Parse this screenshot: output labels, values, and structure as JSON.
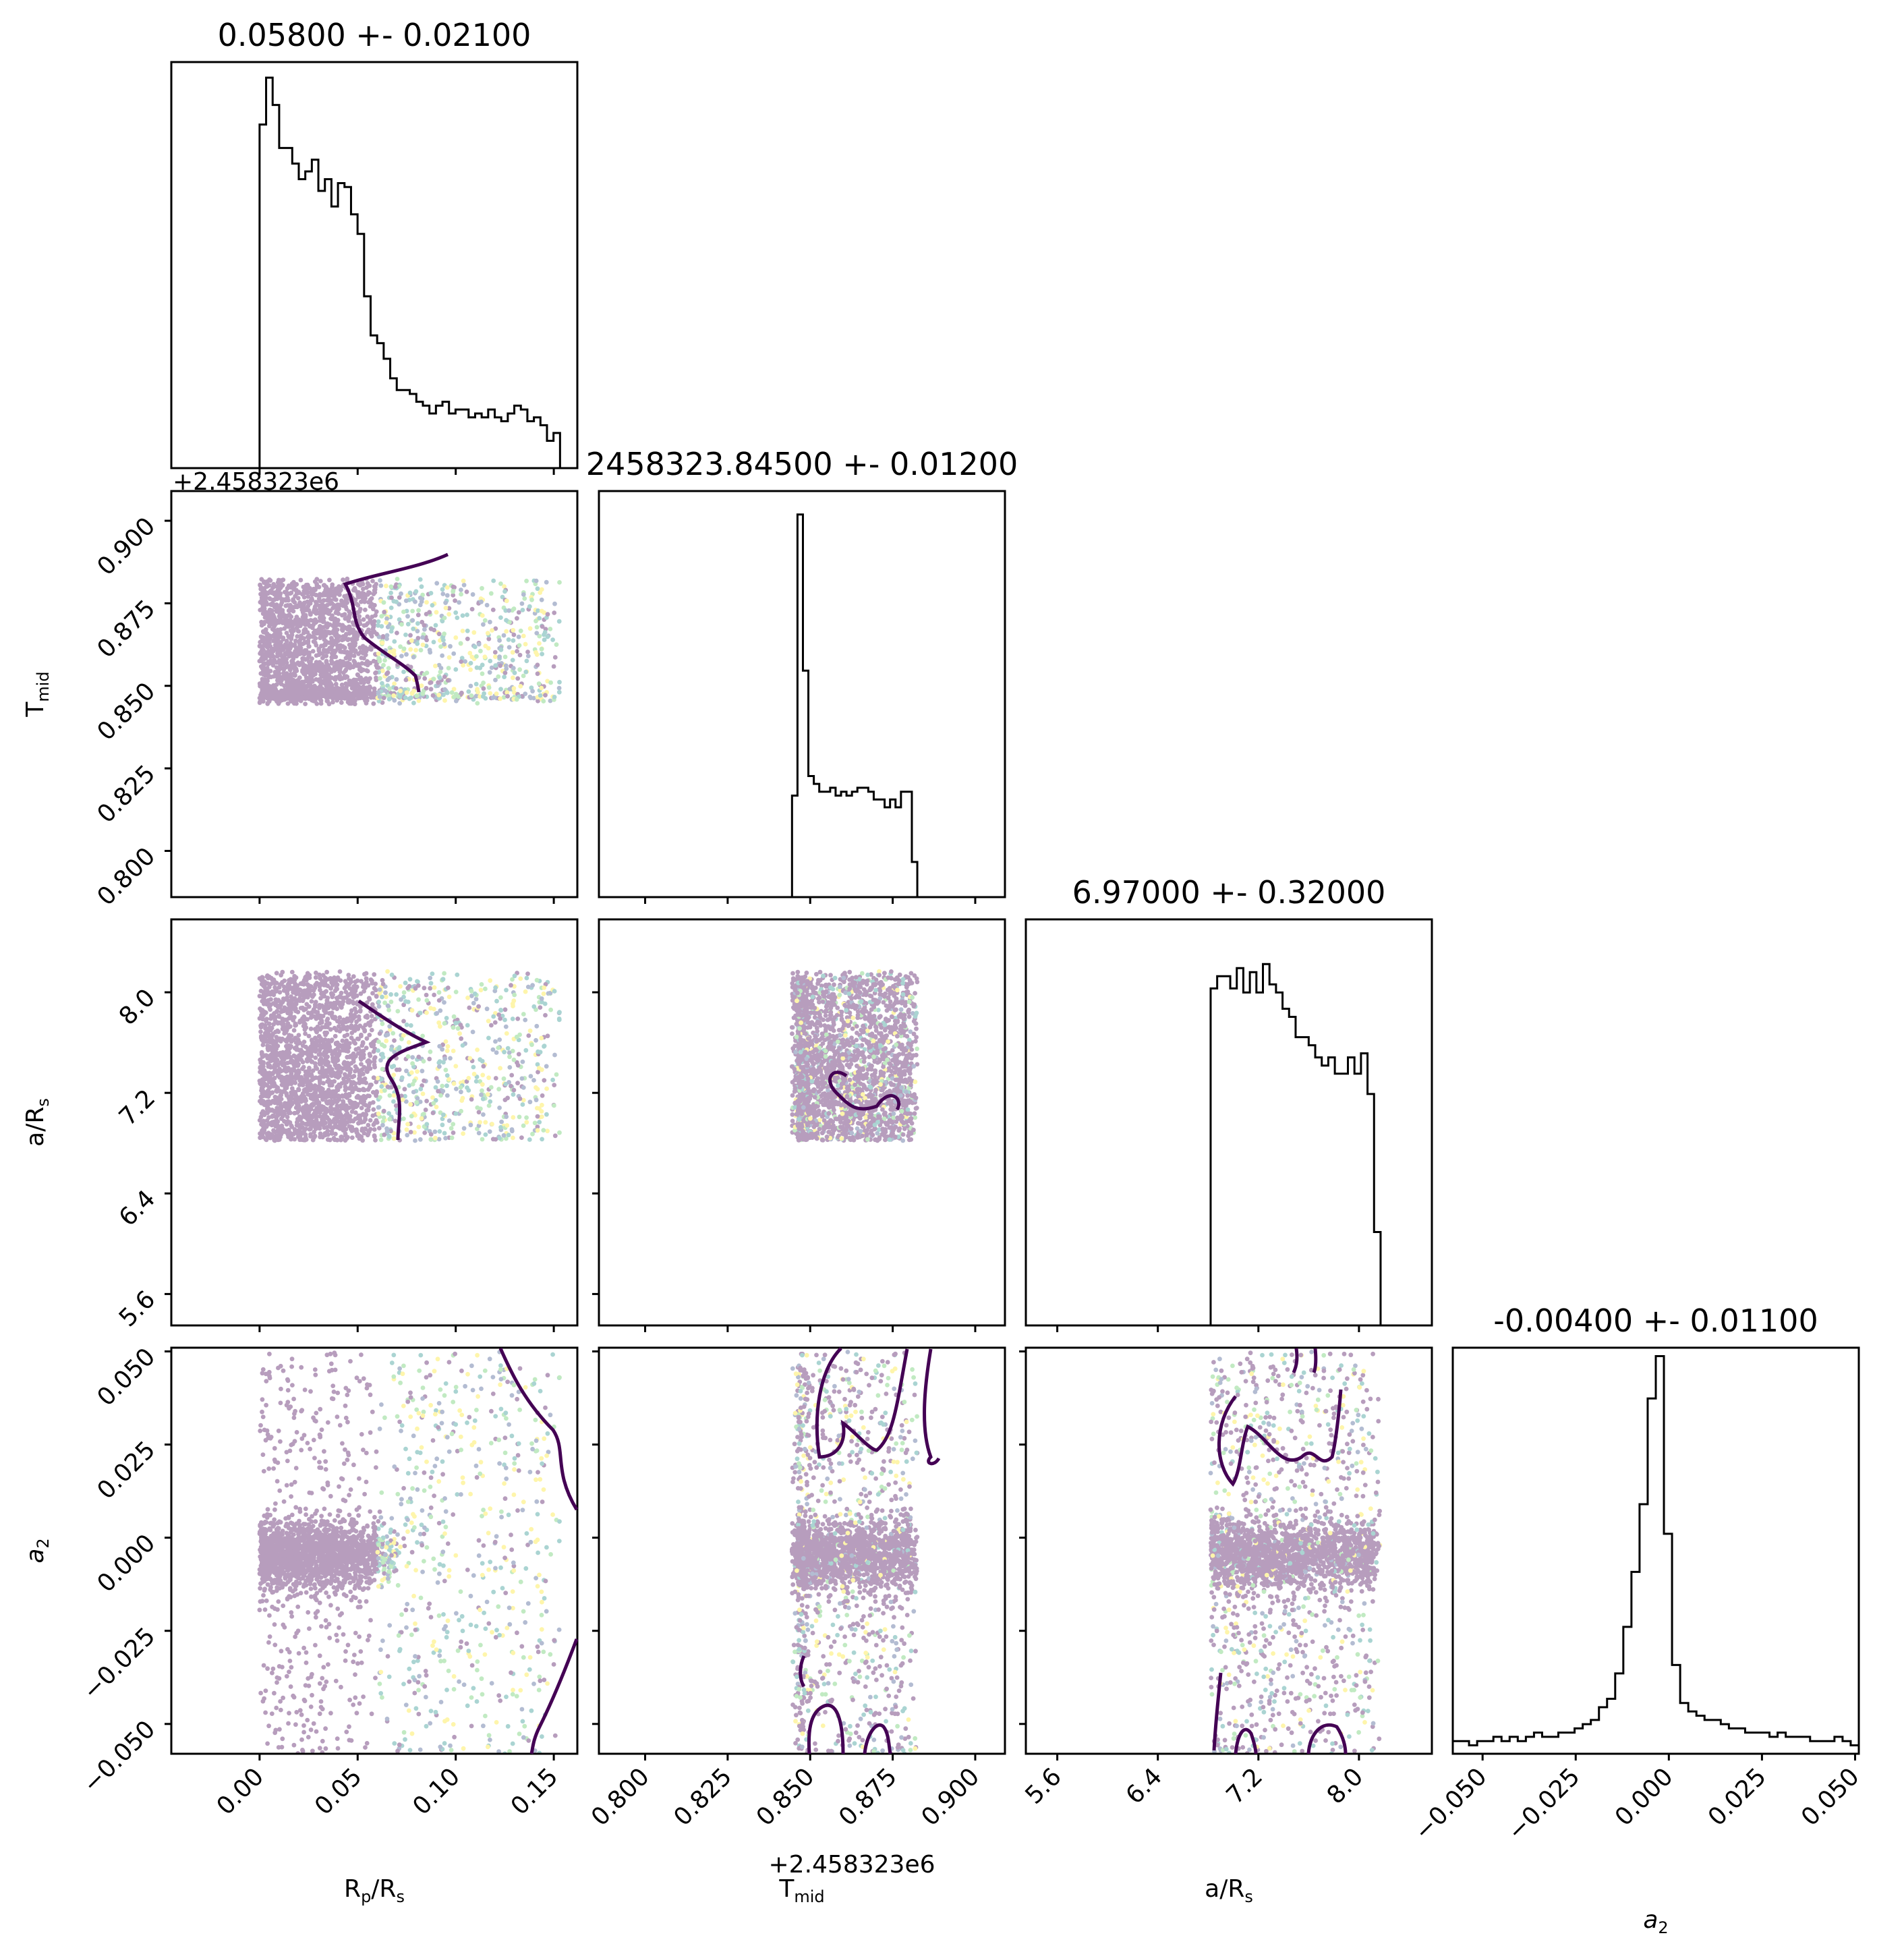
{
  "chart_data": {
    "type": "scatter",
    "subtype": "corner-plot",
    "parameters": [
      {
        "key": "rprs",
        "label_main": "R",
        "label_sub": "p",
        "label_tail": "/R",
        "label_sub2": "s",
        "title": "0.05800 +- 0.02100",
        "range": [
          -0.045,
          0.162
        ],
        "ticks": [
          0.0,
          0.05,
          0.1,
          0.15
        ],
        "tick_labels": [
          "0.00",
          "0.05",
          "0.10",
          "0.15"
        ],
        "histogram": {
          "x_start": 0.0,
          "bin_width": 0.00333,
          "counts": [
            88,
            100,
            93,
            82,
            82,
            78,
            74,
            76,
            79,
            71,
            74,
            67,
            73,
            72,
            65,
            60,
            44,
            34,
            32,
            28,
            23,
            20,
            20,
            19,
            17,
            16,
            14,
            16,
            17,
            14,
            15,
            15,
            13,
            14,
            13,
            15,
            13,
            12,
            14,
            16,
            15,
            12,
            13,
            11,
            7,
            9
          ],
          "ymax": 104
        }
      },
      {
        "key": "tmid",
        "label_main": "T",
        "label_sub": "mid",
        "label_tail": "",
        "label_sub2": "",
        "title": "2458323.84500 +- 0.01200",
        "range": [
          0.786,
          0.909
        ],
        "offset_label": "+2.458323e6",
        "ticks": [
          0.8,
          0.825,
          0.85,
          0.875,
          0.9
        ],
        "tick_labels": [
          "0.800",
          "0.825",
          "0.850",
          "0.875",
          "0.900"
        ],
        "histogram": {
          "x_start": 0.8445,
          "bin_width": 0.00165,
          "counts": [
            26,
            98,
            58,
            31,
            29,
            27,
            27,
            28,
            26,
            27,
            26,
            27,
            28,
            28,
            27,
            25,
            25,
            23,
            25,
            23,
            27,
            27,
            9
          ],
          "ymax": 104
        }
      },
      {
        "key": "ars",
        "label_main": "a/R",
        "label_sub": "s",
        "label_tail": "",
        "label_sub2": "",
        "title": "6.97000 +- 0.32000",
        "range": [
          5.35,
          8.58
        ],
        "ticks": [
          5.6,
          6.4,
          7.2,
          8.0
        ],
        "tick_labels": [
          "5.6",
          "6.4",
          "7.2",
          "8.0"
        ],
        "histogram": {
          "x_start": 6.82,
          "bin_width": 0.052,
          "counts": [
            83,
            86,
            86,
            83,
            88,
            82,
            87,
            82,
            89,
            84,
            82,
            78,
            76,
            71,
            71,
            69,
            66,
            64,
            66,
            62,
            62,
            66,
            62,
            67,
            57,
            23
          ],
          "ymax": 100
        }
      },
      {
        "key": "a2",
        "label_main": "a",
        "label_sub": "2",
        "label_tail": "",
        "label_sub2": "",
        "label_italic": true,
        "title": "-0.00400 +- 0.01100",
        "range": [
          -0.058,
          0.051
        ],
        "ticks": [
          -0.05,
          -0.025,
          0.0,
          0.025,
          0.05
        ],
        "tick_labels": [
          "−0.050",
          "−0.025",
          "0.000",
          "0.025",
          "0.050"
        ],
        "histogram": {
          "x_start": -0.058,
          "bin_width": 0.00218,
          "counts": [
            3,
            3,
            2,
            3,
            3,
            4,
            3,
            4,
            3,
            4,
            5,
            4,
            4,
            5,
            5,
            6,
            7,
            8,
            11,
            13,
            19,
            30,
            43,
            59,
            84,
            94,
            52,
            21,
            12,
            10,
            9,
            8,
            8,
            7,
            6,
            6,
            5,
            5,
            5,
            4,
            5,
            4,
            4,
            4,
            3,
            3,
            3,
            4,
            3,
            2
          ],
          "ymax": 96
        }
      }
    ],
    "scatter_points_per_panel": 2600,
    "scatter_colormap": [
      "#440154",
      "#3b528b",
      "#21918c",
      "#5ec962",
      "#fde725"
    ],
    "contour_color": "#440154",
    "histogram_color": "#000000",
    "grid": false
  }
}
